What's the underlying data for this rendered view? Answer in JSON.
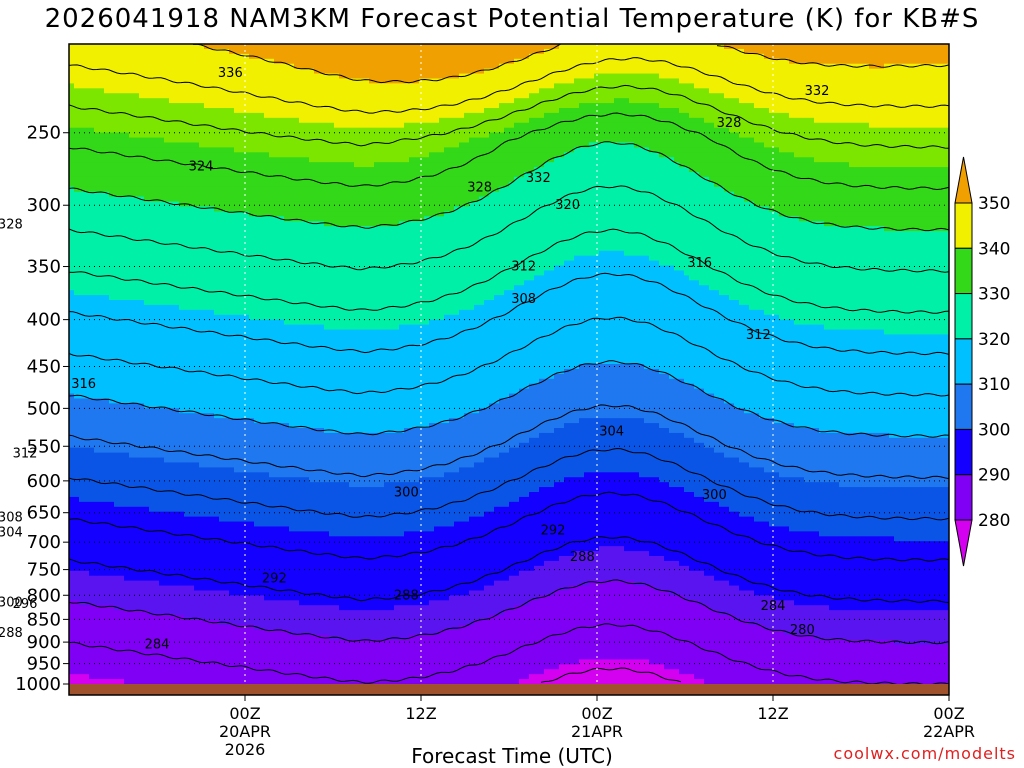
{
  "title": "2026041918 NAM3KM Forecast Potential Temperature (K) for KB#S",
  "xlabel": "Forecast Time (UTC)",
  "credit": "coolwx.com/modelts",
  "chart_data": {
    "type": "heatmap",
    "title": "2026041918 NAM3KM Forecast Potential Temperature (K) for KB#S",
    "xlabel": "Forecast Time (UTC)",
    "ylabel": "",
    "y_axis": "pressure (hPa), reversed",
    "ylim": [
      1000,
      200
    ],
    "y_ticks": [
      250,
      300,
      350,
      400,
      450,
      500,
      550,
      600,
      650,
      700,
      750,
      800,
      850,
      900,
      950,
      1000
    ],
    "x_range_hours": [
      -6,
      54
    ],
    "x_ticks": [
      {
        "hour": 6,
        "lines": [
          "00Z",
          "20APR",
          "2026"
        ]
      },
      {
        "hour": 18,
        "lines": [
          "12Z"
        ]
      },
      {
        "hour": 30,
        "lines": [
          "00Z",
          "21APR"
        ]
      },
      {
        "hour": 42,
        "lines": [
          "12Z"
        ]
      },
      {
        "hour": 54,
        "lines": [
          "00Z",
          "22APR"
        ]
      }
    ],
    "grid": "dotted",
    "colorbar": {
      "levels": [
        280,
        290,
        300,
        310,
        320,
        330,
        340,
        350
      ],
      "colors": [
        "#d400f0",
        "#7f00f5",
        "#5a14f0",
        "#1400ff",
        "#0a55e6",
        "#1f78f0",
        "#00c0ff",
        "#00f0a8",
        "#33d919",
        "#7ce600",
        "#f0f000",
        "#f0a000"
      ]
    },
    "contour_interval": 4,
    "contour_labels": [
      {
        "value": "336",
        "hour": 5,
        "p": 215
      },
      {
        "value": "332",
        "hour": 45,
        "p": 225
      },
      {
        "value": "328",
        "hour": 39,
        "p": 244
      },
      {
        "value": "324",
        "hour": 3,
        "p": 272
      },
      {
        "value": "328",
        "hour": 22,
        "p": 287
      },
      {
        "value": "332",
        "hour": 26,
        "p": 280
      },
      {
        "value": "320",
        "hour": 28,
        "p": 300
      },
      {
        "value": "328",
        "hour": -10,
        "p": 315
      },
      {
        "value": "312",
        "hour": 25,
        "p": 350
      },
      {
        "value": "316",
        "hour": 37,
        "p": 347
      },
      {
        "value": "308",
        "hour": 25,
        "p": 380
      },
      {
        "value": "312",
        "hour": 41,
        "p": 416
      },
      {
        "value": "316",
        "hour": -5,
        "p": 470
      },
      {
        "value": "304",
        "hour": 31,
        "p": 530
      },
      {
        "value": "312",
        "hour": -9,
        "p": 560
      },
      {
        "value": "300",
        "hour": 17,
        "p": 618
      },
      {
        "value": "300",
        "hour": 38,
        "p": 622
      },
      {
        "value": "308",
        "hour": -10,
        "p": 658
      },
      {
        "value": "304",
        "hour": -10,
        "p": 683
      },
      {
        "value": "292",
        "hour": 27,
        "p": 680
      },
      {
        "value": "288",
        "hour": 29,
        "p": 727
      },
      {
        "value": "292",
        "hour": 8,
        "p": 767
      },
      {
        "value": "288",
        "hour": 17,
        "p": 800
      },
      {
        "value": "300",
        "hour": -10,
        "p": 815
      },
      {
        "value": "296",
        "hour": -9,
        "p": 818
      },
      {
        "value": "284",
        "hour": 42,
        "p": 822
      },
      {
        "value": "280",
        "hour": 44,
        "p": 873
      },
      {
        "value": "288",
        "hour": -10,
        "p": 880
      },
      {
        "value": "284",
        "hour": 0,
        "p": 906
      }
    ]
  }
}
